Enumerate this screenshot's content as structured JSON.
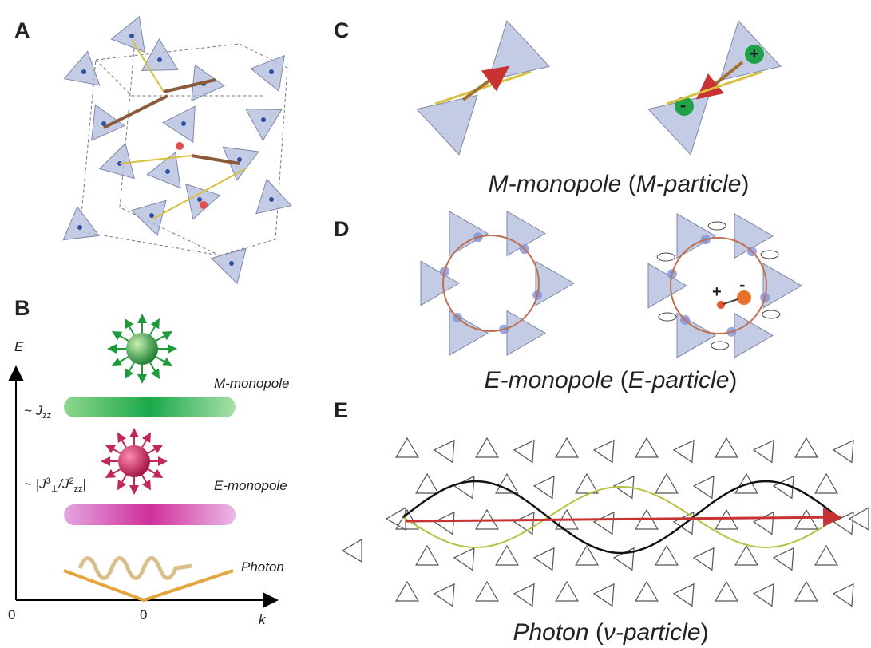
{
  "labels": [
    "A",
    "B",
    "C",
    "D",
    "E"
  ],
  "panel_b": {
    "y_axis_label": "E",
    "x_axis_label": "k",
    "origin_label": "0",
    "x_zero_label": "0",
    "m_level": {
      "name": "M-monopole",
      "energy": [
        "~ J",
        "zz"
      ]
    },
    "e_level": {
      "name": "E-monopole",
      "energy": [
        "~ |J",
        "3",
        "⊥",
        "/J",
        "2",
        "zz",
        "|"
      ]
    },
    "photon_label": "Photon"
  },
  "panel_c": {
    "caption": [
      "M-monopole",
      " (",
      "M-particle",
      ")"
    ],
    "charges": [
      "+",
      "-"
    ]
  },
  "panel_d": {
    "caption": [
      "E-monopole",
      " (",
      "E-particle",
      ")"
    ],
    "charges": [
      "+",
      "-"
    ]
  },
  "panel_e": {
    "caption": [
      "Photon",
      " (",
      "ν-particle",
      ")"
    ]
  }
}
